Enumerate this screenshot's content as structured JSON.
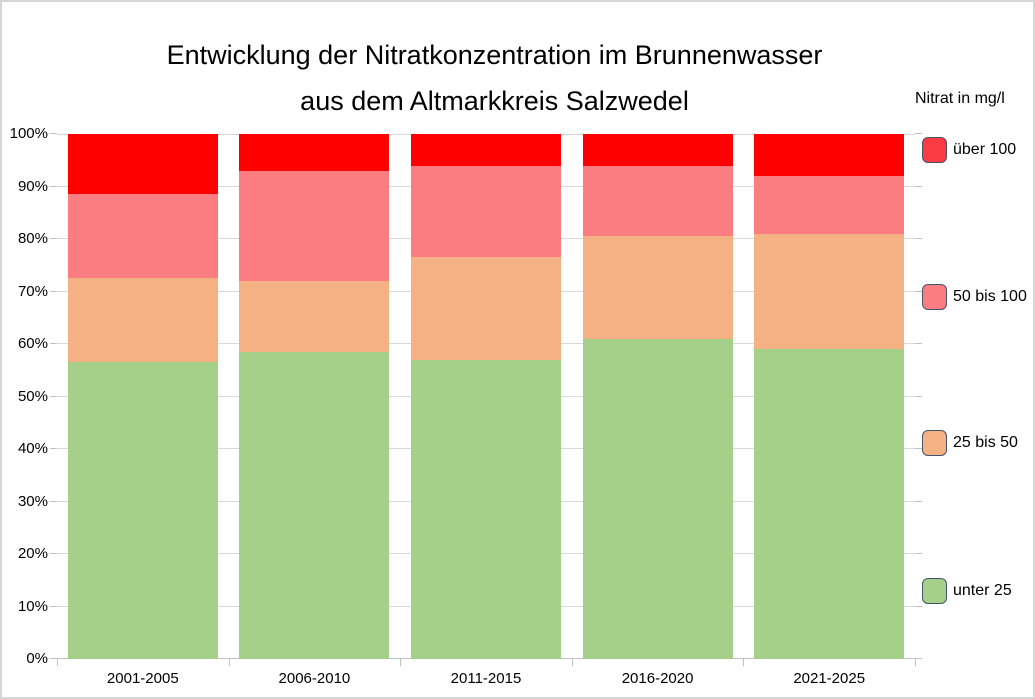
{
  "title": {
    "line1": "Entwicklung der Nitratkonzentration im Brunnenwasser",
    "line2": "aus dem Altmarkkreis Salzwedel"
  },
  "legend": {
    "title": "Nitrat in mg/l",
    "position": "right",
    "swatch_border_color": "#44546a",
    "items": [
      {
        "label": "über 100",
        "color": "#fa3b41"
      },
      {
        "label": "50 bis 100",
        "color": "#fc7d81"
      },
      {
        "label": "25 bis 50",
        "color": "#f4b183"
      },
      {
        "label": "unter 25",
        "color": "#a5d08a"
      }
    ]
  },
  "chart_data": {
    "type": "bar",
    "subtype": "stacked-percent",
    "title": "Entwicklung der Nitratkonzentration im Brunnenwasser aus dem Altmarkkreis Salzwedel",
    "legend_title": "Nitrat in mg/l",
    "legend_position": "right",
    "categories": [
      "2001-2005",
      "2006-2010",
      "2011-2015",
      "2016-2020",
      "2021-2025"
    ],
    "series": [
      {
        "name": "unter 25",
        "color": "#a5d08a",
        "values": [
          56.5,
          58.5,
          57.0,
          61.0,
          59.0
        ]
      },
      {
        "name": "25 bis 50",
        "color": "#f4b183",
        "values": [
          16.0,
          13.5,
          19.5,
          19.5,
          22.0
        ]
      },
      {
        "name": "50 bis 100",
        "color": "#fc7d81",
        "values": [
          16.0,
          21.0,
          17.5,
          13.5,
          11.0
        ]
      },
      {
        "name": "über 100",
        "color": "#fe0000",
        "values": [
          11.5,
          7.0,
          6.0,
          6.0,
          8.0
        ]
      }
    ],
    "xlabel": "",
    "ylabel": "",
    "y_axis": {
      "min": 0,
      "max": 100,
      "tick_step": 10,
      "tick_labels": [
        "0%",
        "10%",
        "20%",
        "30%",
        "40%",
        "50%",
        "60%",
        "70%",
        "80%",
        "90%",
        "100%"
      ],
      "grid": true,
      "grid_color": "#d9d9d9"
    }
  }
}
